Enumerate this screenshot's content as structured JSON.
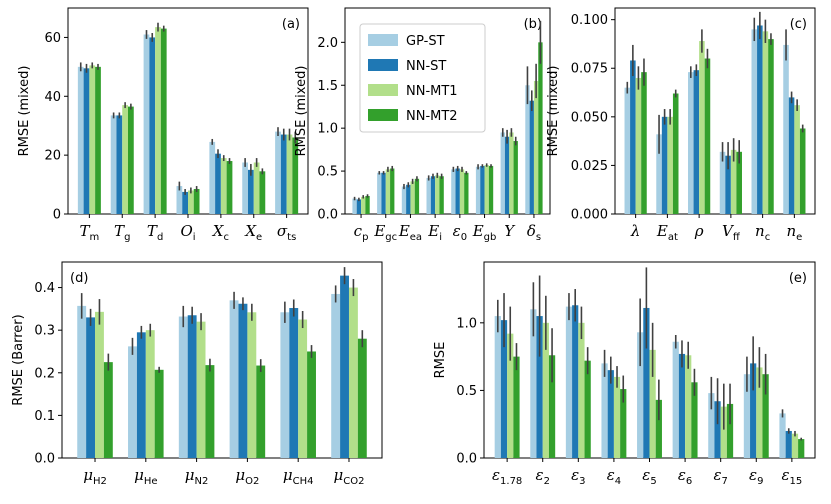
{
  "colors": {
    "GP-ST": "#a6cee3",
    "NN-ST": "#1f78b4",
    "NN-MT1": "#b2df8a",
    "NN-MT2": "#33a02c"
  },
  "legend": [
    "GP-ST",
    "NN-ST",
    "NN-MT1",
    "NN-MT2"
  ],
  "chart_data": [
    {
      "type": "bar",
      "label": "(a)",
      "ylabel": "RMSE (mixed)",
      "ylim": [
        0,
        70
      ],
      "yticks": [
        "0",
        "20",
        "40",
        "60"
      ],
      "ytick_values": [
        0,
        20,
        40,
        60
      ],
      "categories": [
        "T_m",
        "T_g",
        "T_d",
        "O_i",
        "X_c",
        "X_e",
        "σ_ts"
      ],
      "series": [
        {
          "name": "GP-ST",
          "values": [
            50.0,
            33.5,
            61.0,
            9.5,
            24.5,
            17.5,
            28.0
          ],
          "err": [
            1.5,
            1.0,
            1.5,
            1.5,
            1.0,
            1.5,
            1.5
          ]
        },
        {
          "name": "NN-ST",
          "values": [
            49.5,
            33.5,
            60.0,
            7.5,
            20.5,
            15.0,
            27.0
          ],
          "err": [
            1.5,
            1.0,
            1.5,
            1.0,
            1.5,
            2.0,
            2.0
          ]
        },
        {
          "name": "NN-MT1",
          "values": [
            50.5,
            37.0,
            63.5,
            8.0,
            19.0,
            17.5,
            27.0
          ],
          "err": [
            1.0,
            1.0,
            1.5,
            1.0,
            1.0,
            1.5,
            2.0
          ]
        },
        {
          "name": "NN-MT2",
          "values": [
            50.0,
            36.5,
            63.0,
            8.5,
            18.0,
            14.5,
            26.0
          ],
          "err": [
            1.0,
            1.0,
            1.0,
            1.0,
            1.0,
            1.0,
            2.0
          ]
        }
      ]
    },
    {
      "type": "bar",
      "label": "(b)",
      "ylabel": "RMSE (mixed)",
      "ylim": [
        0,
        2.4
      ],
      "yticks": [
        "0.0",
        "0.5",
        "1.0",
        "1.5",
        "2.0"
      ],
      "ytick_values": [
        0,
        0.5,
        1.0,
        1.5,
        2.0
      ],
      "categories": [
        "c_p",
        "E_gc",
        "E_ea",
        "E_i",
        "ε_0",
        "E_gb",
        "Y",
        "δ_s"
      ],
      "series": [
        {
          "name": "GP-ST",
          "values": [
            0.18,
            0.48,
            0.32,
            0.42,
            0.52,
            0.55,
            0.95,
            1.5
          ],
          "err": [
            0.02,
            0.02,
            0.03,
            0.03,
            0.03,
            0.03,
            0.05,
            0.22
          ]
        },
        {
          "name": "NN-ST",
          "values": [
            0.17,
            0.48,
            0.34,
            0.44,
            0.53,
            0.56,
            0.9,
            1.32
          ],
          "err": [
            0.02,
            0.02,
            0.03,
            0.03,
            0.03,
            0.02,
            0.08,
            0.12
          ]
        },
        {
          "name": "NN-MT1",
          "values": [
            0.2,
            0.52,
            0.38,
            0.45,
            0.52,
            0.57,
            0.95,
            1.55
          ],
          "err": [
            0.02,
            0.03,
            0.03,
            0.03,
            0.03,
            0.02,
            0.05,
            0.2
          ]
        },
        {
          "name": "NN-MT2",
          "values": [
            0.21,
            0.53,
            0.41,
            0.44,
            0.48,
            0.56,
            0.85,
            2.0
          ],
          "err": [
            0.02,
            0.03,
            0.03,
            0.03,
            0.02,
            0.02,
            0.05,
            0.25
          ]
        }
      ]
    },
    {
      "type": "bar",
      "label": "(c)",
      "ylabel": "RMSE (mixed)",
      "ylim": [
        0,
        0.106
      ],
      "yticks": [
        "0.000",
        "0.025",
        "0.050",
        "0.075",
        "0.100"
      ],
      "ytick_values": [
        0,
        0.025,
        0.05,
        0.075,
        0.1
      ],
      "categories": [
        "λ",
        "E_at",
        "ρ",
        "V_ff",
        "n_c",
        "n_e"
      ],
      "series": [
        {
          "name": "GP-ST",
          "values": [
            0.065,
            0.041,
            0.073,
            0.032,
            0.095,
            0.087
          ],
          "err": [
            0.003,
            0.01,
            0.003,
            0.005,
            0.006,
            0.008
          ]
        },
        {
          "name": "NN-ST",
          "values": [
            0.079,
            0.05,
            0.074,
            0.03,
            0.097,
            0.06
          ],
          "err": [
            0.008,
            0.004,
            0.003,
            0.007,
            0.007,
            0.003
          ]
        },
        {
          "name": "NN-MT1",
          "values": [
            0.07,
            0.05,
            0.089,
            0.033,
            0.094,
            0.056
          ],
          "err": [
            0.006,
            0.004,
            0.006,
            0.006,
            0.006,
            0.003
          ]
        },
        {
          "name": "NN-MT2",
          "values": [
            0.073,
            0.062,
            0.08,
            0.032,
            0.09,
            0.044
          ],
          "err": [
            0.007,
            0.002,
            0.005,
            0.006,
            0.003,
            0.002
          ]
        }
      ]
    },
    {
      "type": "bar",
      "label": "(d)",
      "ylabel": "RMSE (Barrer)",
      "ylim": [
        0,
        0.46
      ],
      "yticks": [
        "0.0",
        "0.1",
        "0.2",
        "0.3",
        "0.4"
      ],
      "ytick_values": [
        0,
        0.1,
        0.2,
        0.3,
        0.4
      ],
      "categories": [
        "μ_H2",
        "μ_He",
        "μ_N2",
        "μ_O2",
        "μ_CH4",
        "μ_CO2"
      ],
      "series": [
        {
          "name": "GP-ST",
          "values": [
            0.357,
            0.262,
            0.332,
            0.37,
            0.342,
            0.385
          ],
          "err": [
            0.03,
            0.02,
            0.025,
            0.02,
            0.025,
            0.02
          ]
        },
        {
          "name": "NN-ST",
          "values": [
            0.33,
            0.295,
            0.335,
            0.362,
            0.352,
            0.428
          ],
          "err": [
            0.02,
            0.015,
            0.02,
            0.015,
            0.02,
            0.02
          ]
        },
        {
          "name": "NN-MT1",
          "values": [
            0.343,
            0.3,
            0.32,
            0.342,
            0.325,
            0.4
          ],
          "err": [
            0.03,
            0.015,
            0.02,
            0.02,
            0.02,
            0.02
          ]
        },
        {
          "name": "NN-MT2",
          "values": [
            0.225,
            0.207,
            0.218,
            0.217,
            0.25,
            0.28
          ],
          "err": [
            0.02,
            0.007,
            0.015,
            0.015,
            0.015,
            0.02
          ]
        }
      ]
    },
    {
      "type": "bar",
      "label": "(e)",
      "ylabel": "RMSE",
      "ylim": [
        0,
        1.45
      ],
      "yticks": [
        "0.0",
        "0.5",
        "1.0"
      ],
      "ytick_values": [
        0,
        0.5,
        1.0
      ],
      "categories": [
        "ε_1.78",
        "ε_2",
        "ε_3",
        "ε_4",
        "ε_5",
        "ε_6",
        "ε_7",
        "ε_9",
        "ε_15"
      ],
      "series": [
        {
          "name": "GP-ST",
          "values": [
            1.05,
            1.1,
            1.12,
            0.7,
            0.93,
            0.86,
            0.48,
            0.62,
            0.33
          ],
          "err": [
            0.12,
            0.2,
            0.1,
            0.1,
            0.25,
            0.05,
            0.12,
            0.13,
            0.03
          ]
        },
        {
          "name": "NN-ST",
          "values": [
            1.02,
            1.05,
            1.13,
            0.65,
            1.11,
            0.77,
            0.42,
            0.7,
            0.2
          ],
          "err": [
            0.2,
            0.3,
            0.12,
            0.1,
            0.3,
            0.1,
            0.17,
            0.2,
            0.02
          ]
        },
        {
          "name": "NN-MT1",
          "values": [
            0.92,
            1.0,
            1.0,
            0.6,
            0.8,
            0.76,
            0.38,
            0.67,
            0.18
          ],
          "err": [
            0.2,
            0.2,
            0.12,
            0.08,
            0.2,
            0.1,
            0.17,
            0.15,
            0.02
          ]
        },
        {
          "name": "NN-MT2",
          "values": [
            0.75,
            0.76,
            0.72,
            0.51,
            0.43,
            0.56,
            0.4,
            0.62,
            0.14
          ],
          "err": [
            0.1,
            0.2,
            0.1,
            0.1,
            0.15,
            0.1,
            0.15,
            0.15,
            0.01
          ]
        }
      ]
    }
  ]
}
